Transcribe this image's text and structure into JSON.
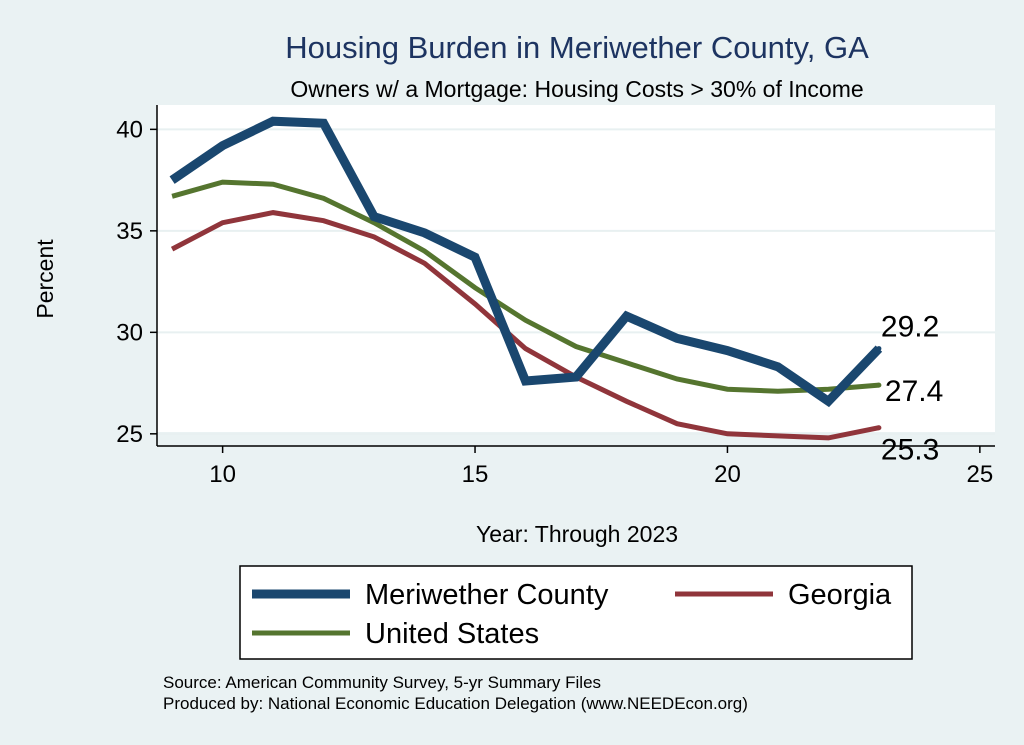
{
  "chart_data": {
    "type": "line",
    "title": "Housing Burden in Meriwether County, GA",
    "subtitle": "Owners w/ a Mortgage: Housing Costs > 30% of Income",
    "xlabel": "Year: Through 2023",
    "ylabel": "Percent",
    "xlim": [
      8.7,
      25.3
    ],
    "ylim": [
      24.4,
      41.2
    ],
    "xticks": [
      10,
      15,
      20,
      25
    ],
    "yticks": [
      25,
      30,
      35,
      40
    ],
    "grid": true,
    "x": [
      9,
      10,
      11,
      12,
      13,
      14,
      15,
      16,
      17,
      18,
      19,
      20,
      21,
      22,
      23
    ],
    "series": [
      {
        "name": "Meriwether County",
        "color": "#1a476f",
        "values": [
          37.5,
          39.2,
          40.4,
          40.3,
          35.7,
          34.9,
          33.7,
          27.6,
          27.8,
          30.8,
          29.7,
          29.1,
          28.3,
          26.6,
          29.2
        ],
        "end_label": "29.2"
      },
      {
        "name": "Georgia",
        "color": "#90353b",
        "values": [
          34.1,
          35.4,
          35.9,
          35.5,
          34.7,
          33.4,
          31.4,
          29.2,
          27.8,
          26.6,
          25.5,
          25.0,
          24.9,
          24.8,
          25.3
        ],
        "end_label": "25.3"
      },
      {
        "name": "United States",
        "color": "#55752f",
        "values": [
          36.7,
          37.4,
          37.3,
          36.6,
          35.4,
          34.0,
          32.2,
          30.6,
          29.3,
          28.5,
          27.7,
          27.2,
          27.1,
          27.2,
          27.4
        ],
        "end_label": "27.4"
      }
    ],
    "legend": {
      "placement": "bottom",
      "entries": [
        "Meriwether County",
        "Georgia",
        "United States"
      ]
    },
    "notes": [
      "Source: American Community Survey, 5-yr Summary Files",
      "Produced by: National Economic Education Delegation (www.NEEDEcon.org)"
    ]
  }
}
